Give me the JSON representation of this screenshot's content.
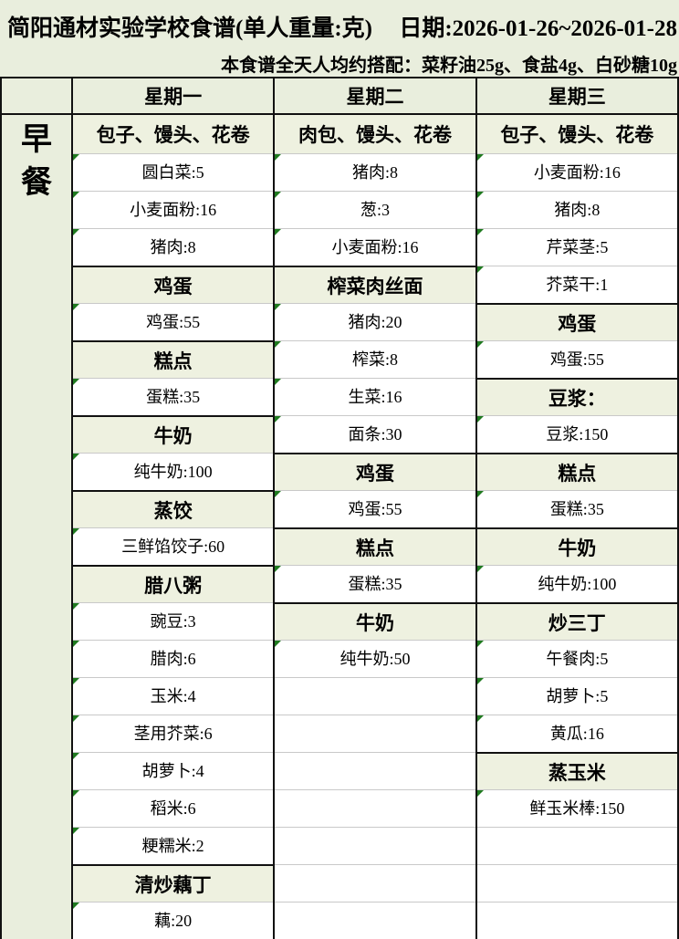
{
  "header": {
    "title": "简阳通材实验学校食谱(单人重量:克)",
    "date": "日期:2026-01-26~2026-01-28",
    "subtitle": "本食谱全天人均约搭配：菜籽油25g、食盐4g、白砂糖10g"
  },
  "meal_label": "早餐",
  "colors": {
    "page_bg": "#e9eedd",
    "dish_cell_bg": "#eef1e0",
    "ingredient_cell_bg": "#ffffff",
    "border_dark": "#111111",
    "border_light": "#c9c9c9",
    "comment_triangle": "#1f7a1f"
  },
  "days": [
    {
      "name": "星期一",
      "cells": [
        {
          "type": "dish",
          "text": "包子、馒头、花卷"
        },
        {
          "type": "ing",
          "text": "圆白菜:5"
        },
        {
          "type": "ing",
          "text": "小麦面粉:16"
        },
        {
          "type": "ing",
          "text": "猪肉:8"
        },
        {
          "type": "dish",
          "text": "鸡蛋"
        },
        {
          "type": "ing",
          "text": "鸡蛋:55"
        },
        {
          "type": "dish",
          "text": "糕点"
        },
        {
          "type": "ing",
          "text": "蛋糕:35"
        },
        {
          "type": "dish",
          "text": "牛奶"
        },
        {
          "type": "ing",
          "text": "纯牛奶:100"
        },
        {
          "type": "dish",
          "text": "蒸饺"
        },
        {
          "type": "ing",
          "text": "三鲜馅饺子:60"
        },
        {
          "type": "dish",
          "text": "腊八粥"
        },
        {
          "type": "ing",
          "text": "豌豆:3"
        },
        {
          "type": "ing",
          "text": "腊肉:6"
        },
        {
          "type": "ing",
          "text": "玉米:4"
        },
        {
          "type": "ing",
          "text": "茎用芥菜:6"
        },
        {
          "type": "ing",
          "text": "胡萝卜:4"
        },
        {
          "type": "ing",
          "text": "稻米:6"
        },
        {
          "type": "ing",
          "text": "粳糯米:2"
        },
        {
          "type": "dish",
          "text": "清炒藕丁"
        },
        {
          "type": "ing",
          "text": "藕:20"
        }
      ]
    },
    {
      "name": "星期二",
      "cells": [
        {
          "type": "dish",
          "text": "肉包、馒头、花卷"
        },
        {
          "type": "ing",
          "text": "猪肉:8"
        },
        {
          "type": "ing",
          "text": "葱:3"
        },
        {
          "type": "ing",
          "text": "小麦面粉:16"
        },
        {
          "type": "dish",
          "text": "榨菜肉丝面"
        },
        {
          "type": "ing",
          "text": "猪肉:20"
        },
        {
          "type": "ing",
          "text": "榨菜:8"
        },
        {
          "type": "ing",
          "text": "生菜:16"
        },
        {
          "type": "ing",
          "text": "面条:30"
        },
        {
          "type": "dish",
          "text": "鸡蛋"
        },
        {
          "type": "ing",
          "text": "鸡蛋:55"
        },
        {
          "type": "dish",
          "text": "糕点"
        },
        {
          "type": "ing",
          "text": "蛋糕:35"
        },
        {
          "type": "dish",
          "text": "牛奶"
        },
        {
          "type": "ing",
          "text": "纯牛奶:50"
        },
        {
          "type": "empty",
          "text": ""
        },
        {
          "type": "empty",
          "text": ""
        },
        {
          "type": "empty",
          "text": ""
        },
        {
          "type": "empty",
          "text": ""
        },
        {
          "type": "empty",
          "text": ""
        },
        {
          "type": "empty",
          "text": ""
        },
        {
          "type": "empty",
          "text": ""
        }
      ]
    },
    {
      "name": "星期三",
      "cells": [
        {
          "type": "dish",
          "text": "包子、馒头、花卷"
        },
        {
          "type": "ing",
          "text": "小麦面粉:16"
        },
        {
          "type": "ing",
          "text": "猪肉:8"
        },
        {
          "type": "ing",
          "text": "芹菜茎:5"
        },
        {
          "type": "ing",
          "text": "芥菜干:1"
        },
        {
          "type": "dish",
          "text": "鸡蛋"
        },
        {
          "type": "ing",
          "text": "鸡蛋:55"
        },
        {
          "type": "dish",
          "text": "豆浆："
        },
        {
          "type": "ing",
          "text": "豆浆:150"
        },
        {
          "type": "dish",
          "text": "糕点"
        },
        {
          "type": "ing",
          "text": "蛋糕:35"
        },
        {
          "type": "dish",
          "text": "牛奶"
        },
        {
          "type": "ing",
          "text": "纯牛奶:100"
        },
        {
          "type": "dish",
          "text": "炒三丁"
        },
        {
          "type": "ing",
          "text": "午餐肉:5"
        },
        {
          "type": "ing",
          "text": "胡萝卜:5"
        },
        {
          "type": "ing",
          "text": "黄瓜:16"
        },
        {
          "type": "dish",
          "text": "蒸玉米"
        },
        {
          "type": "ing",
          "text": "鲜玉米棒:150"
        },
        {
          "type": "empty",
          "text": ""
        },
        {
          "type": "empty",
          "text": ""
        },
        {
          "type": "empty",
          "text": ""
        }
      ]
    }
  ]
}
